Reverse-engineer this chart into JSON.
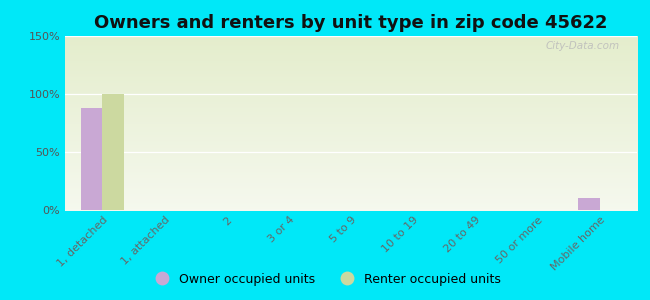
{
  "title": "Owners and renters by unit type in zip code 45622",
  "categories": [
    "1, detached",
    "1, attached",
    "2",
    "3 or 4",
    "5 to 9",
    "10 to 19",
    "20 to 49",
    "50 or more",
    "Mobile home"
  ],
  "owner_values": [
    88,
    0,
    0,
    0,
    0,
    0,
    0,
    0,
    10
  ],
  "renter_values": [
    100,
    0,
    0,
    0,
    0,
    0,
    0,
    0,
    0
  ],
  "owner_color": "#c9a8d4",
  "renter_color": "#ccd9a0",
  "background_outer": "#00e8f8",
  "background_plot_top": "#e4edcc",
  "background_plot_bottom": "#f5f8ee",
  "ylim": [
    0,
    150
  ],
  "yticks": [
    0,
    50,
    100,
    150
  ],
  "ytick_labels": [
    "0%",
    "50%",
    "100%",
    "150%"
  ],
  "legend_owner": "Owner occupied units",
  "legend_renter": "Renter occupied units",
  "watermark": "City-Data.com",
  "bar_width": 0.35,
  "title_fontsize": 13,
  "tick_fontsize": 8,
  "legend_fontsize": 9
}
